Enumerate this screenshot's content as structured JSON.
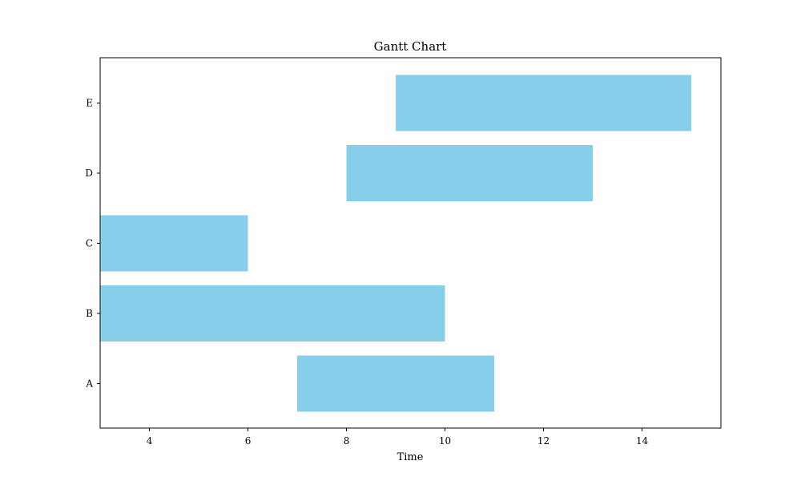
{
  "chart_data": {
    "type": "bar",
    "orientation": "horizontal",
    "title": "Gantt Chart",
    "xlabel": "Time",
    "ylabel": "",
    "xlim": [
      3,
      15.6
    ],
    "xticks": [
      4,
      6,
      8,
      10,
      12,
      14
    ],
    "grid": false,
    "legend": "none",
    "bar_color": "#87ceeb",
    "tasks": [
      {
        "label": "A",
        "start": 7,
        "end": 11
      },
      {
        "label": "B",
        "start": 3,
        "end": 10
      },
      {
        "label": "C",
        "start": 3,
        "end": 6
      },
      {
        "label": "D",
        "start": 8,
        "end": 13
      },
      {
        "label": "E",
        "start": 9,
        "end": 15
      }
    ]
  }
}
